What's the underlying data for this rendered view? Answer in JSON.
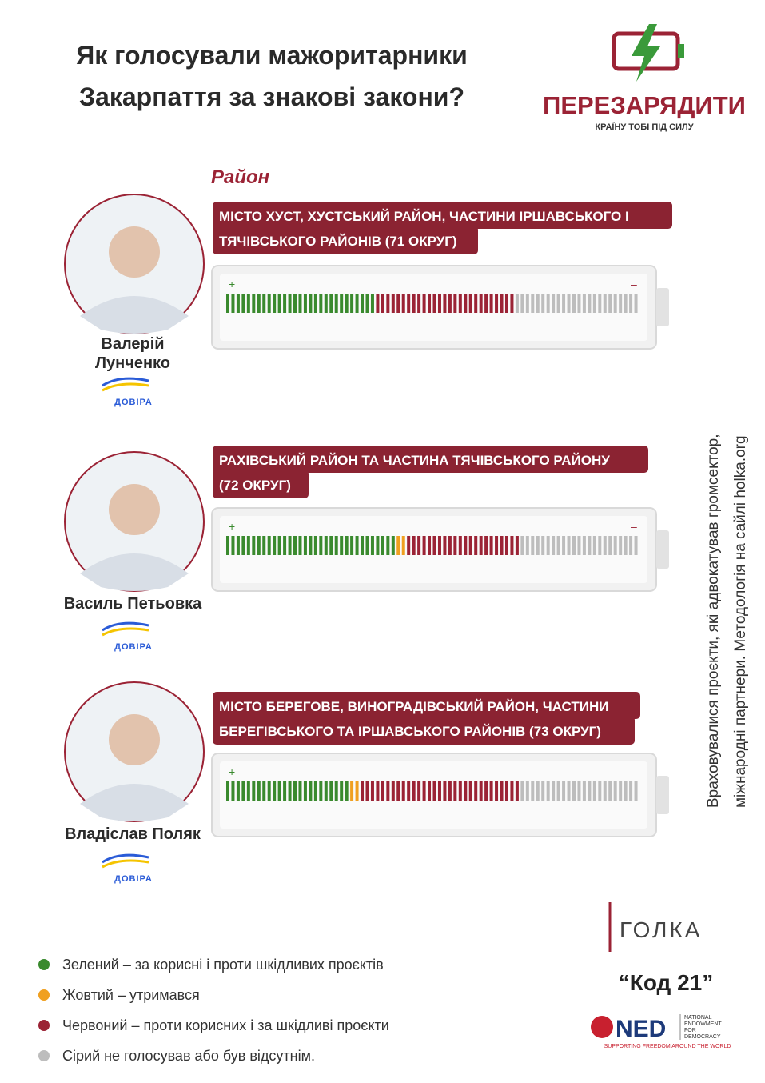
{
  "header": {
    "title_lines": [
      "Як голосували мажоритарники",
      "Закарпаття за знакові закони?"
    ]
  },
  "logo": {
    "name": "ПЕРЕЗАРЯДИТИ",
    "tagline": "КРАЇНУ ТОБІ ПІД СИЛУ"
  },
  "district_heading": "Район",
  "battery_signs": {
    "plus": "+",
    "minus": "–"
  },
  "candidates": [
    {
      "name_lines": [
        "Валерій",
        "Лунченко"
      ],
      "party": "ДОВІРА",
      "district_lines": [
        "МІСТО ХУСТ, ХУСТСЬКИЙ РАЙОН, ЧАСТИНИ ІРШАВСЬКОГО  І",
        "ТЯЧІВСЬКОГО РАЙОНІВ (71 ОКРУГ)"
      ],
      "segments": [
        {
          "color": "#3a8a2e",
          "count": 29
        },
        {
          "color": "#9b2335",
          "count": 27
        },
        {
          "color": "#bdbdbd",
          "count": 24
        }
      ]
    },
    {
      "name_lines": [
        "Василь Петьовка"
      ],
      "party": "ДОВІРА",
      "district_lines": [
        "РАХІВСЬКИЙ РАЙОН ТА ЧАСТИНА ТЯЧІВСЬКОГО РАЙОНУ",
        "(72 ОКРУГ)"
      ],
      "segments": [
        {
          "color": "#3a8a2e",
          "count": 33
        },
        {
          "color": "#f0a020",
          "count": 2
        },
        {
          "color": "#9b2335",
          "count": 22
        },
        {
          "color": "#bdbdbd",
          "count": 23
        }
      ]
    },
    {
      "name_lines": [
        "Владіслав Поляк"
      ],
      "party": "ДОВІРА",
      "district_lines": [
        "МІСТО БЕРЕГОВЕ, ВИНОГРАДІВСЬКИЙ РАЙОН, ЧАСТИНИ",
        "БЕРЕГІВСЬКОГО ТА ІРШАВСЬКОГО РАЙОНІВ (73 ОКРУГ)"
      ],
      "segments": [
        {
          "color": "#3a8a2e",
          "count": 24
        },
        {
          "color": "#f0a020",
          "count": 2
        },
        {
          "color": "#9b2335",
          "count": 31
        },
        {
          "color": "#bdbdbd",
          "count": 23
        }
      ]
    }
  ],
  "note_lines": [
    "Враховувалися проєкти, які адвокатував громсектор,",
    "міжнародні партнери. Методологія на сайлі holka.org"
  ],
  "legend": [
    {
      "color": "#3a8a2e",
      "text": "Зелений – за корисні і проти шкідливих проєктів"
    },
    {
      "color": "#f0a020",
      "text": "Жовтий – утримався"
    },
    {
      "color": "#9b2335",
      "text": "Червоний – проти корисних і за шкідливі проєкти"
    },
    {
      "color": "#bdbdbd",
      "text": "Сірий не голосував або був відсутнім."
    }
  ],
  "footer": {
    "golka": "ГОЛКА",
    "code": "“Код 21”",
    "ned": "NED",
    "ned_name": [
      "NATIONAL",
      "ENDOWMENT",
      "FOR",
      "DEMOCRACY"
    ],
    "ned_tagline": "SUPPORTING FREEDOM AROUND THE WORLD"
  }
}
